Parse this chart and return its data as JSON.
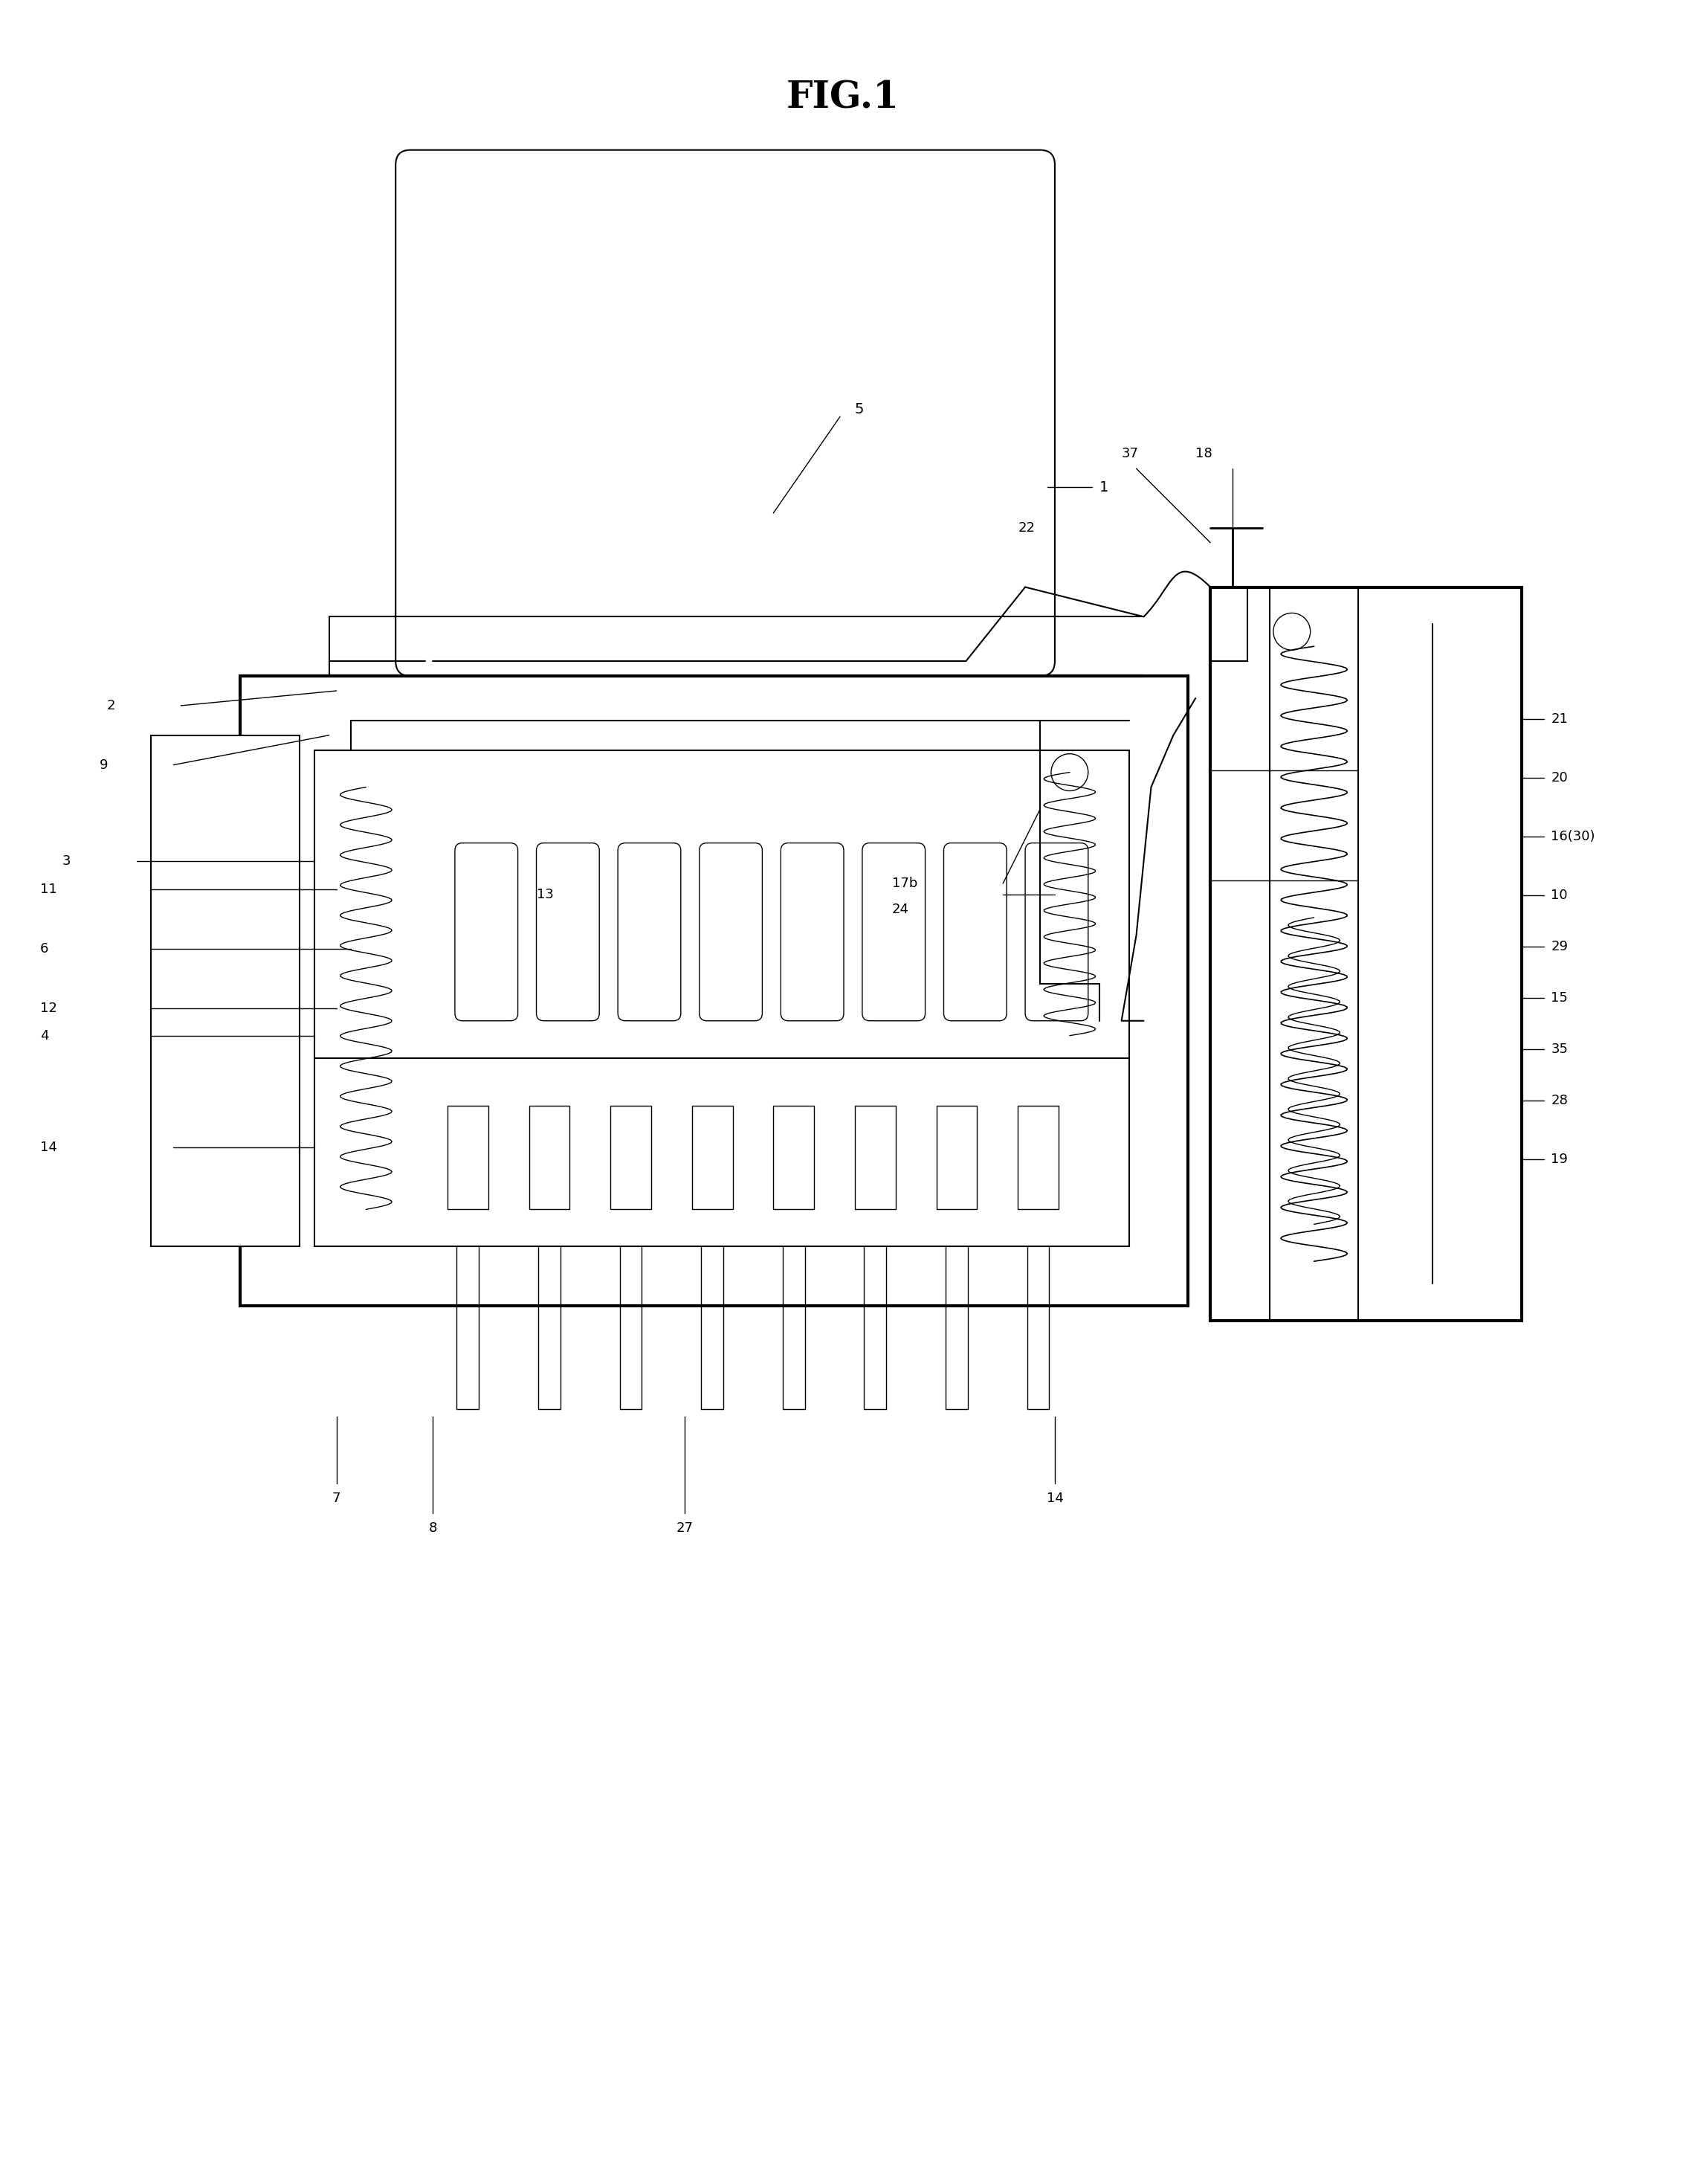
{
  "title": "FIG.1",
  "bg_color": "#ffffff",
  "line_color": "#000000",
  "fig_width": 22.68,
  "fig_height": 29.37
}
